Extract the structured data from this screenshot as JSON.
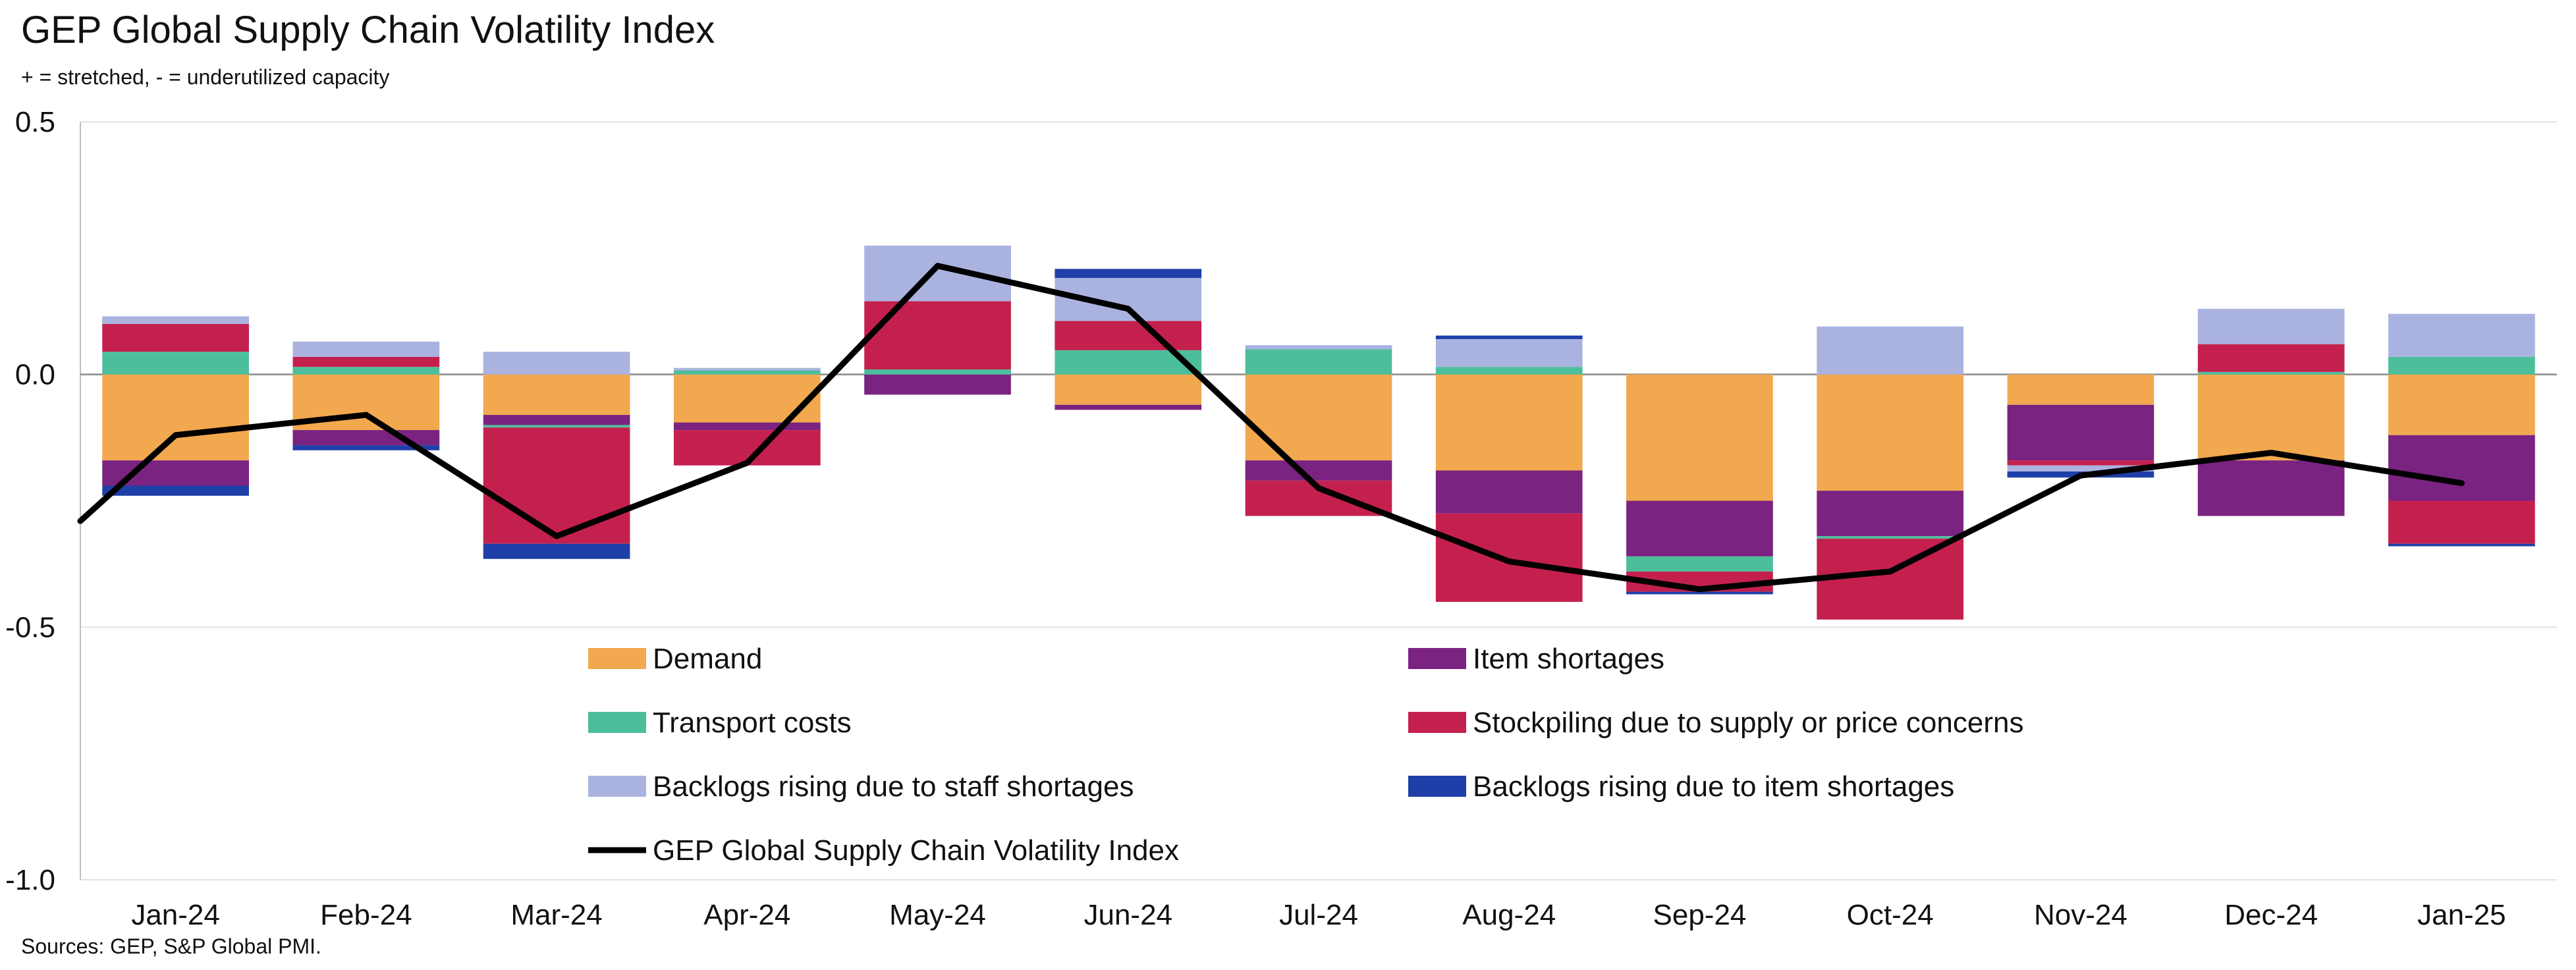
{
  "title": "GEP Global Supply Chain Volatility Index",
  "subtitle": "+ = stretched, - = underutilized capacity",
  "source": "Sources: GEP, S&P Global PMI.",
  "colors": {
    "demand": "#F2A84E",
    "item_shortages": "#7B2381",
    "transport_costs": "#4DBE9C",
    "stockpiling": "#C4204E",
    "backlogs_staff": "#AAB3E0",
    "backlogs_item": "#1F3FA8",
    "index_line": "#000000"
  },
  "chart_data": {
    "type": "bar",
    "stacked": true,
    "categories": [
      "Jan-24",
      "Feb-24",
      "Mar-24",
      "Apr-24",
      "May-24",
      "Jun-24",
      "Jul-24",
      "Aug-24",
      "Sep-24",
      "Oct-24",
      "Nov-24",
      "Dec-24",
      "Jan-25"
    ],
    "ylim": [
      -1.0,
      0.5
    ],
    "yticks": [
      -1.0,
      -0.5,
      0.0,
      0.5
    ],
    "ytick_labels": [
      "-1.0",
      "-0.5",
      "0.0",
      "0.5"
    ],
    "grid": true,
    "legend": "bottom-center",
    "series": [
      {
        "key": "demand",
        "name": "Demand",
        "color_key": "demand",
        "values": [
          -0.17,
          -0.11,
          -0.08,
          -0.095,
          0.0,
          -0.06,
          -0.17,
          -0.19,
          -0.25,
          -0.23,
          -0.06,
          -0.17,
          -0.12
        ]
      },
      {
        "key": "item_shortages",
        "name": "Item shortages",
        "color_key": "item_shortages",
        "values": [
          -0.05,
          -0.03,
          -0.02,
          -0.015,
          -0.04,
          -0.01,
          -0.04,
          -0.085,
          -0.11,
          -0.09,
          -0.11,
          -0.11,
          -0.13
        ]
      },
      {
        "key": "transport_costs",
        "name": "Transport costs",
        "color_key": "transport_costs",
        "values": [
          0.045,
          0.015,
          -0.005,
          0.008,
          0.01,
          0.048,
          0.05,
          0.015,
          -0.03,
          -0.005,
          0.0,
          0.005,
          0.035
        ]
      },
      {
        "key": "stockpiling",
        "name": "Stockpiling due to supply or price concerns",
        "color_key": "stockpiling",
        "values": [
          0.055,
          0.02,
          -0.23,
          -0.07,
          0.135,
          0.058,
          -0.07,
          -0.175,
          -0.04,
          -0.16,
          -0.01,
          0.055,
          -0.085
        ]
      },
      {
        "key": "backlogs_staff",
        "name": "Backlogs rising due to staff shortages",
        "color_key": "backlogs_staff",
        "values": [
          0.015,
          0.03,
          0.045,
          0.005,
          0.11,
          0.085,
          0.008,
          0.055,
          0.0,
          0.095,
          -0.012,
          0.07,
          0.085
        ]
      },
      {
        "key": "backlogs_item",
        "name": "Backlogs rising due to item shortages",
        "color_key": "backlogs_item",
        "values": [
          -0.02,
          -0.01,
          -0.03,
          0.0,
          0.0,
          0.018,
          0.0,
          0.007,
          -0.005,
          0.0,
          -0.012,
          0.0,
          -0.005
        ]
      }
    ],
    "line": {
      "name": "GEP Global Supply Chain Volatility Index",
      "color_key": "index_line",
      "start_value": -0.29,
      "values": [
        -0.12,
        -0.08,
        -0.32,
        -0.175,
        0.215,
        0.13,
        -0.225,
        -0.37,
        -0.425,
        -0.39,
        -0.2,
        -0.155,
        -0.215
      ]
    },
    "legend_items": [
      {
        "label": "Demand",
        "kind": "bar",
        "color_key": "demand"
      },
      {
        "label": "Item shortages",
        "kind": "bar",
        "color_key": "item_shortages"
      },
      {
        "label": "Transport costs",
        "kind": "bar",
        "color_key": "transport_costs"
      },
      {
        "label": "Stockpiling due to supply or price concerns",
        "kind": "bar",
        "color_key": "stockpiling"
      },
      {
        "label": "Backlogs rising due to staff shortages",
        "kind": "bar",
        "color_key": "backlogs_staff"
      },
      {
        "label": "Backlogs rising due to item shortages",
        "kind": "bar",
        "color_key": "backlogs_item"
      },
      {
        "label": "GEP Global Supply Chain Volatility Index",
        "kind": "line",
        "color_key": "index_line"
      }
    ]
  }
}
